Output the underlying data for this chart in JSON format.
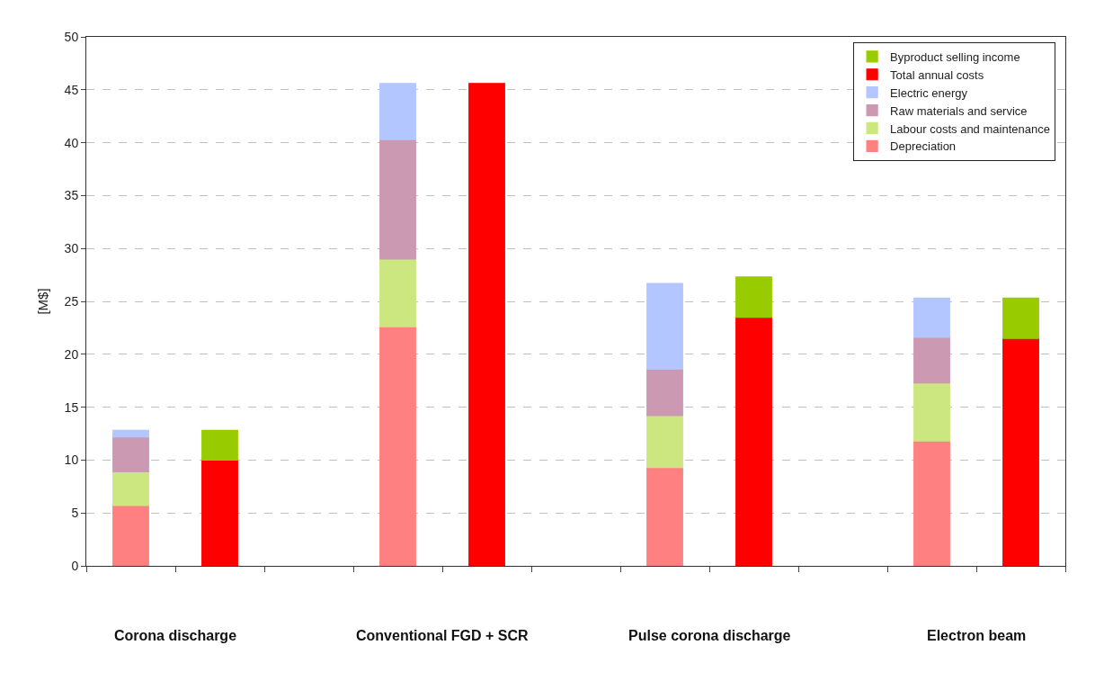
{
  "chart_data": {
    "type": "bar",
    "ylabel": "[M$]",
    "categories": [
      null,
      null,
      null,
      null,
      null,
      null,
      null,
      null,
      null,
      null,
      null
    ],
    "series": [
      {
        "name": "Depreciation",
        "color": "#ff8080",
        "values": [
          5.7,
          null,
          null,
          22.6,
          null,
          null,
          9.3,
          null,
          null,
          11.8,
          null
        ]
      },
      {
        "name": "Labour costs and maintenance",
        "color": "#cce680",
        "values": [
          3.2,
          null,
          null,
          6.4,
          null,
          null,
          4.9,
          null,
          null,
          5.5,
          null
        ]
      },
      {
        "name": "Raw materials and service",
        "color": "#cc99b3",
        "values": [
          3.3,
          null,
          null,
          11.3,
          null,
          null,
          4.4,
          null,
          null,
          4.3,
          null
        ]
      },
      {
        "name": "Electric energy",
        "color": "#b3c6ff",
        "values": [
          0.6,
          null,
          null,
          5.3,
          null,
          null,
          8.1,
          null,
          null,
          3.7,
          null
        ]
      },
      {
        "name": "Total annual costs",
        "color": "#ff0000",
        "values": [
          null,
          10.0,
          null,
          null,
          45.6,
          null,
          null,
          23.5,
          null,
          null,
          21.5
        ]
      },
      {
        "name": "Byproduct selling income",
        "color": "#99cc00",
        "values": [
          null,
          2.8,
          null,
          null,
          null,
          null,
          null,
          3.8,
          null,
          null,
          3.8
        ]
      }
    ],
    "stacked": true,
    "ylim": [
      0,
      50
    ],
    "yticks": [
      0,
      5,
      10,
      15,
      20,
      25,
      30,
      35,
      40,
      45,
      50
    ],
    "grid": "y",
    "legend": "top right",
    "annotations": [
      "Corona discharge",
      "Conventional FGD + SCR",
      "Pulse corona discharge",
      "Electron beam"
    ]
  }
}
